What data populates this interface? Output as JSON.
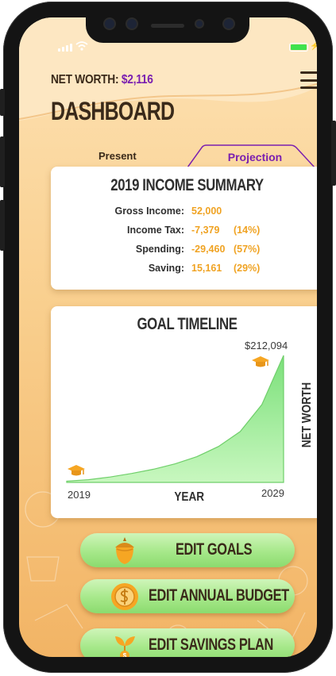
{
  "header": {
    "networth_label": "NET WORTH:",
    "networth_value": "$2,116",
    "title": "DASHBOARD"
  },
  "tabs": {
    "present": "Present",
    "projection": "Projection",
    "active": "projection"
  },
  "income_summary": {
    "title": "2019 INCOME SUMMARY",
    "rows": [
      {
        "label": "Gross Income:",
        "value": "52,000",
        "percent": ""
      },
      {
        "label": "Income Tax:",
        "value": "-7,379",
        "percent": "(14%)"
      },
      {
        "label": "Spending:",
        "value": "-29,460",
        "percent": "(57%)"
      },
      {
        "label": "Saving:",
        "value": "15,161",
        "percent": "(29%)"
      }
    ]
  },
  "goal_timeline": {
    "title": "GOAL TIMELINE",
    "x_label": "YEAR",
    "y_label": "NET WORTH",
    "end_value_label": "$212,094",
    "start_year_label": "2019",
    "end_year_label": "2029"
  },
  "chart_data": {
    "type": "area",
    "title": "GOAL TIMELINE",
    "xlabel": "YEAR",
    "ylabel": "NET WORTH",
    "x": [
      2019,
      2020,
      2021,
      2022,
      2023,
      2024,
      2025,
      2026,
      2027,
      2028,
      2029
    ],
    "values": [
      2116,
      4500,
      9000,
      15000,
      22000,
      31000,
      43000,
      60000,
      85000,
      130000,
      212094
    ],
    "xlim": [
      2019,
      2029
    ],
    "ylim": [
      0,
      212094
    ],
    "annotations": [
      "$212,094"
    ],
    "markers": [
      "graduation-cap-icon at start",
      "graduation-cap-icon at end"
    ],
    "grid": false,
    "fill_color": "#a6f0a0",
    "line_color": "#6fcf6a"
  },
  "actions": {
    "edit_goals": "EDIT GOALS",
    "edit_budget": "EDIT ANNUAL BUDGET",
    "edit_savings": "EDIT SAVINGS PLAN"
  },
  "colors": {
    "accent_purple": "#7a1fb0",
    "value_orange": "#f0a323",
    "button_green": "#a6e88a",
    "background_top": "#fde2b4",
    "background_bottom": "#f2b465",
    "battery_green": "#3ee24e"
  },
  "icons": {
    "menu": "hamburger-menu-icon",
    "goals": "acorn-icon",
    "budget": "coin-icon",
    "savings": "sprout-dollar-icon",
    "goal_marker": "graduation-cap-icon"
  }
}
